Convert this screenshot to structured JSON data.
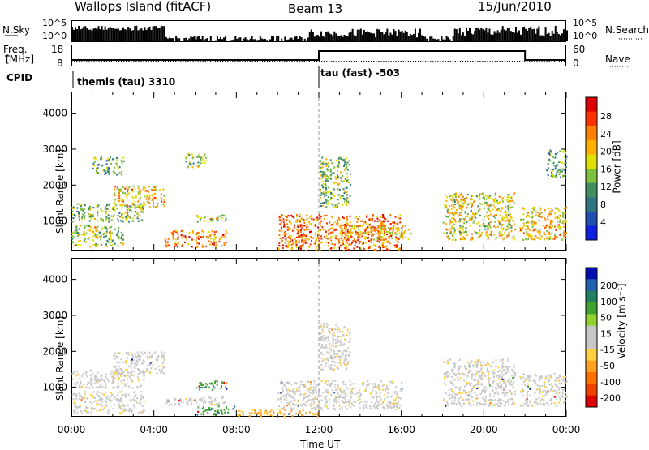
{
  "header": {
    "station": "Wallops Island (fitACF)",
    "beam": "Beam 13",
    "date": "15/Jun/2010"
  },
  "strip_labels": {
    "nsky": "N.Sky",
    "nsearch": "N.Search",
    "freq_line1": "Freq.",
    "freq_line2": "[MHz]",
    "nave": "Nave",
    "cpid": "CPID",
    "log_top": "10^5",
    "log_bottom": "10^0",
    "log_top_right": "10^5",
    "log_bottom_right": "10^0",
    "freq_top": "18",
    "freq_bottom": "8",
    "nave_top": "60",
    "nave_bottom": "0"
  },
  "cpid_segments": [
    {
      "label": "themis (tau) 3310",
      "start_hour": 0
    },
    {
      "label": "tau (fast) -503",
      "start_hour": 12
    }
  ],
  "panels": {
    "power": {
      "ylabel": "Slant Range [km]",
      "cbar_label": "Power [dB]",
      "cbar_ticks": [
        "28",
        "24",
        "20",
        "16",
        "12",
        "8",
        "4"
      ],
      "cbar_colors": [
        "#e00000",
        "#ff3300",
        "#ff8000",
        "#ffb000",
        "#e0e000",
        "#80c040",
        "#409060",
        "#307880",
        "#2050b0",
        "#1020e0"
      ]
    },
    "velocity": {
      "ylabel": "Slant Range [km]",
      "cbar_label": "Velocity [m s⁻¹]",
      "cbar_ticks": [
        "200",
        "100",
        "50",
        "15",
        "-15",
        "-50",
        "-100",
        "-200"
      ],
      "cbar_colors": [
        "#0010b0",
        "#2060b0",
        "#208060",
        "#40a030",
        "#90d030",
        "#c8c8c8",
        "#c8c8c8",
        "#ffd040",
        "#ffa020",
        "#ff7000",
        "#f04000",
        "#e00000"
      ]
    }
  },
  "xaxis": {
    "label": "Time UT",
    "ticks": [
      "00:00",
      "04:00",
      "08:00",
      "12:00",
      "16:00",
      "20:00",
      "00:00"
    ]
  },
  "chart_data": [
    {
      "type": "heatmap",
      "title": "Power",
      "xlabel": "Time UT",
      "ylabel": "Slant Range [km]",
      "xlim_hours": [
        0,
        24
      ],
      "ylim": [
        180,
        4600
      ],
      "yticks": [
        1000,
        2000,
        3000,
        4000
      ],
      "colorbar": {
        "label": "Power [dB]",
        "ticks": [
          4,
          8,
          12,
          16,
          20,
          24,
          28
        ]
      },
      "echo_regions": [
        {
          "t0": 0.0,
          "t1": 2.5,
          "r0": 300,
          "r1": 900,
          "value": 14
        },
        {
          "t0": 0.0,
          "t1": 3.5,
          "r0": 1000,
          "r1": 1500,
          "value": 12
        },
        {
          "t0": 2.0,
          "t1": 4.5,
          "r0": 1400,
          "r1": 2000,
          "value": 18
        },
        {
          "t0": 1.0,
          "t1": 2.5,
          "r0": 2300,
          "r1": 2800,
          "value": 10
        },
        {
          "t0": 5.5,
          "t1": 6.5,
          "r0": 2500,
          "r1": 2900,
          "value": 12
        },
        {
          "t0": 4.5,
          "t1": 7.5,
          "r0": 300,
          "r1": 750,
          "value": 22
        },
        {
          "t0": 6.0,
          "t1": 7.5,
          "r0": 1000,
          "r1": 1200,
          "value": 14
        },
        {
          "t0": 10.0,
          "t1": 16.0,
          "r0": 200,
          "r1": 1200,
          "value": 22
        },
        {
          "t0": 13.0,
          "t1": 16.5,
          "r0": 500,
          "r1": 900,
          "value": 18
        },
        {
          "t0": 12.0,
          "t1": 13.5,
          "r0": 1400,
          "r1": 2800,
          "value": 12
        },
        {
          "t0": 18.0,
          "t1": 21.5,
          "r0": 500,
          "r1": 1800,
          "value": 16
        },
        {
          "t0": 21.7,
          "t1": 24.0,
          "r0": 500,
          "r1": 1400,
          "value": 18
        },
        {
          "t0": 23.0,
          "t1": 24.0,
          "r0": 2200,
          "r1": 3000,
          "value": 10
        }
      ]
    },
    {
      "type": "heatmap",
      "title": "Velocity",
      "xlabel": "Time UT",
      "ylabel": "Slant Range [km]",
      "xlim_hours": [
        0,
        24
      ],
      "ylim": [
        180,
        4600
      ],
      "yticks": [
        1000,
        2000,
        3000,
        4000
      ],
      "colorbar": {
        "label": "Velocity [m s⁻¹]",
        "ticks": [
          -200,
          -100,
          -50,
          -15,
          15,
          50,
          100,
          200
        ]
      },
      "echo_regions": [
        {
          "t0": 0.0,
          "t1": 3.5,
          "r0": 300,
          "r1": 900,
          "value": 0
        },
        {
          "t0": 0.0,
          "t1": 3.5,
          "r0": 1000,
          "r1": 1500,
          "value": 0
        },
        {
          "t0": 2.0,
          "t1": 4.5,
          "r0": 1400,
          "r1": 2000,
          "value": 0
        },
        {
          "t0": 4.5,
          "t1": 7.5,
          "r0": 500,
          "r1": 750,
          "value": 0
        },
        {
          "t0": 6.0,
          "t1": 7.5,
          "r0": 950,
          "r1": 1200,
          "value": 60
        },
        {
          "t0": 6.0,
          "t1": 8.0,
          "r0": 250,
          "r1": 500,
          "value": 60
        },
        {
          "t0": 8.0,
          "t1": 12.0,
          "r0": 200,
          "r1": 400,
          "value": -40
        },
        {
          "t0": 10.0,
          "t1": 16.0,
          "r0": 400,
          "r1": 1200,
          "value": 0
        },
        {
          "t0": 12.0,
          "t1": 13.5,
          "r0": 1500,
          "r1": 2800,
          "value": 0
        },
        {
          "t0": 18.0,
          "t1": 21.5,
          "r0": 500,
          "r1": 1800,
          "value": 0
        },
        {
          "t0": 21.7,
          "t1": 24.0,
          "r0": 500,
          "r1": 1400,
          "value": 0
        }
      ]
    }
  ]
}
